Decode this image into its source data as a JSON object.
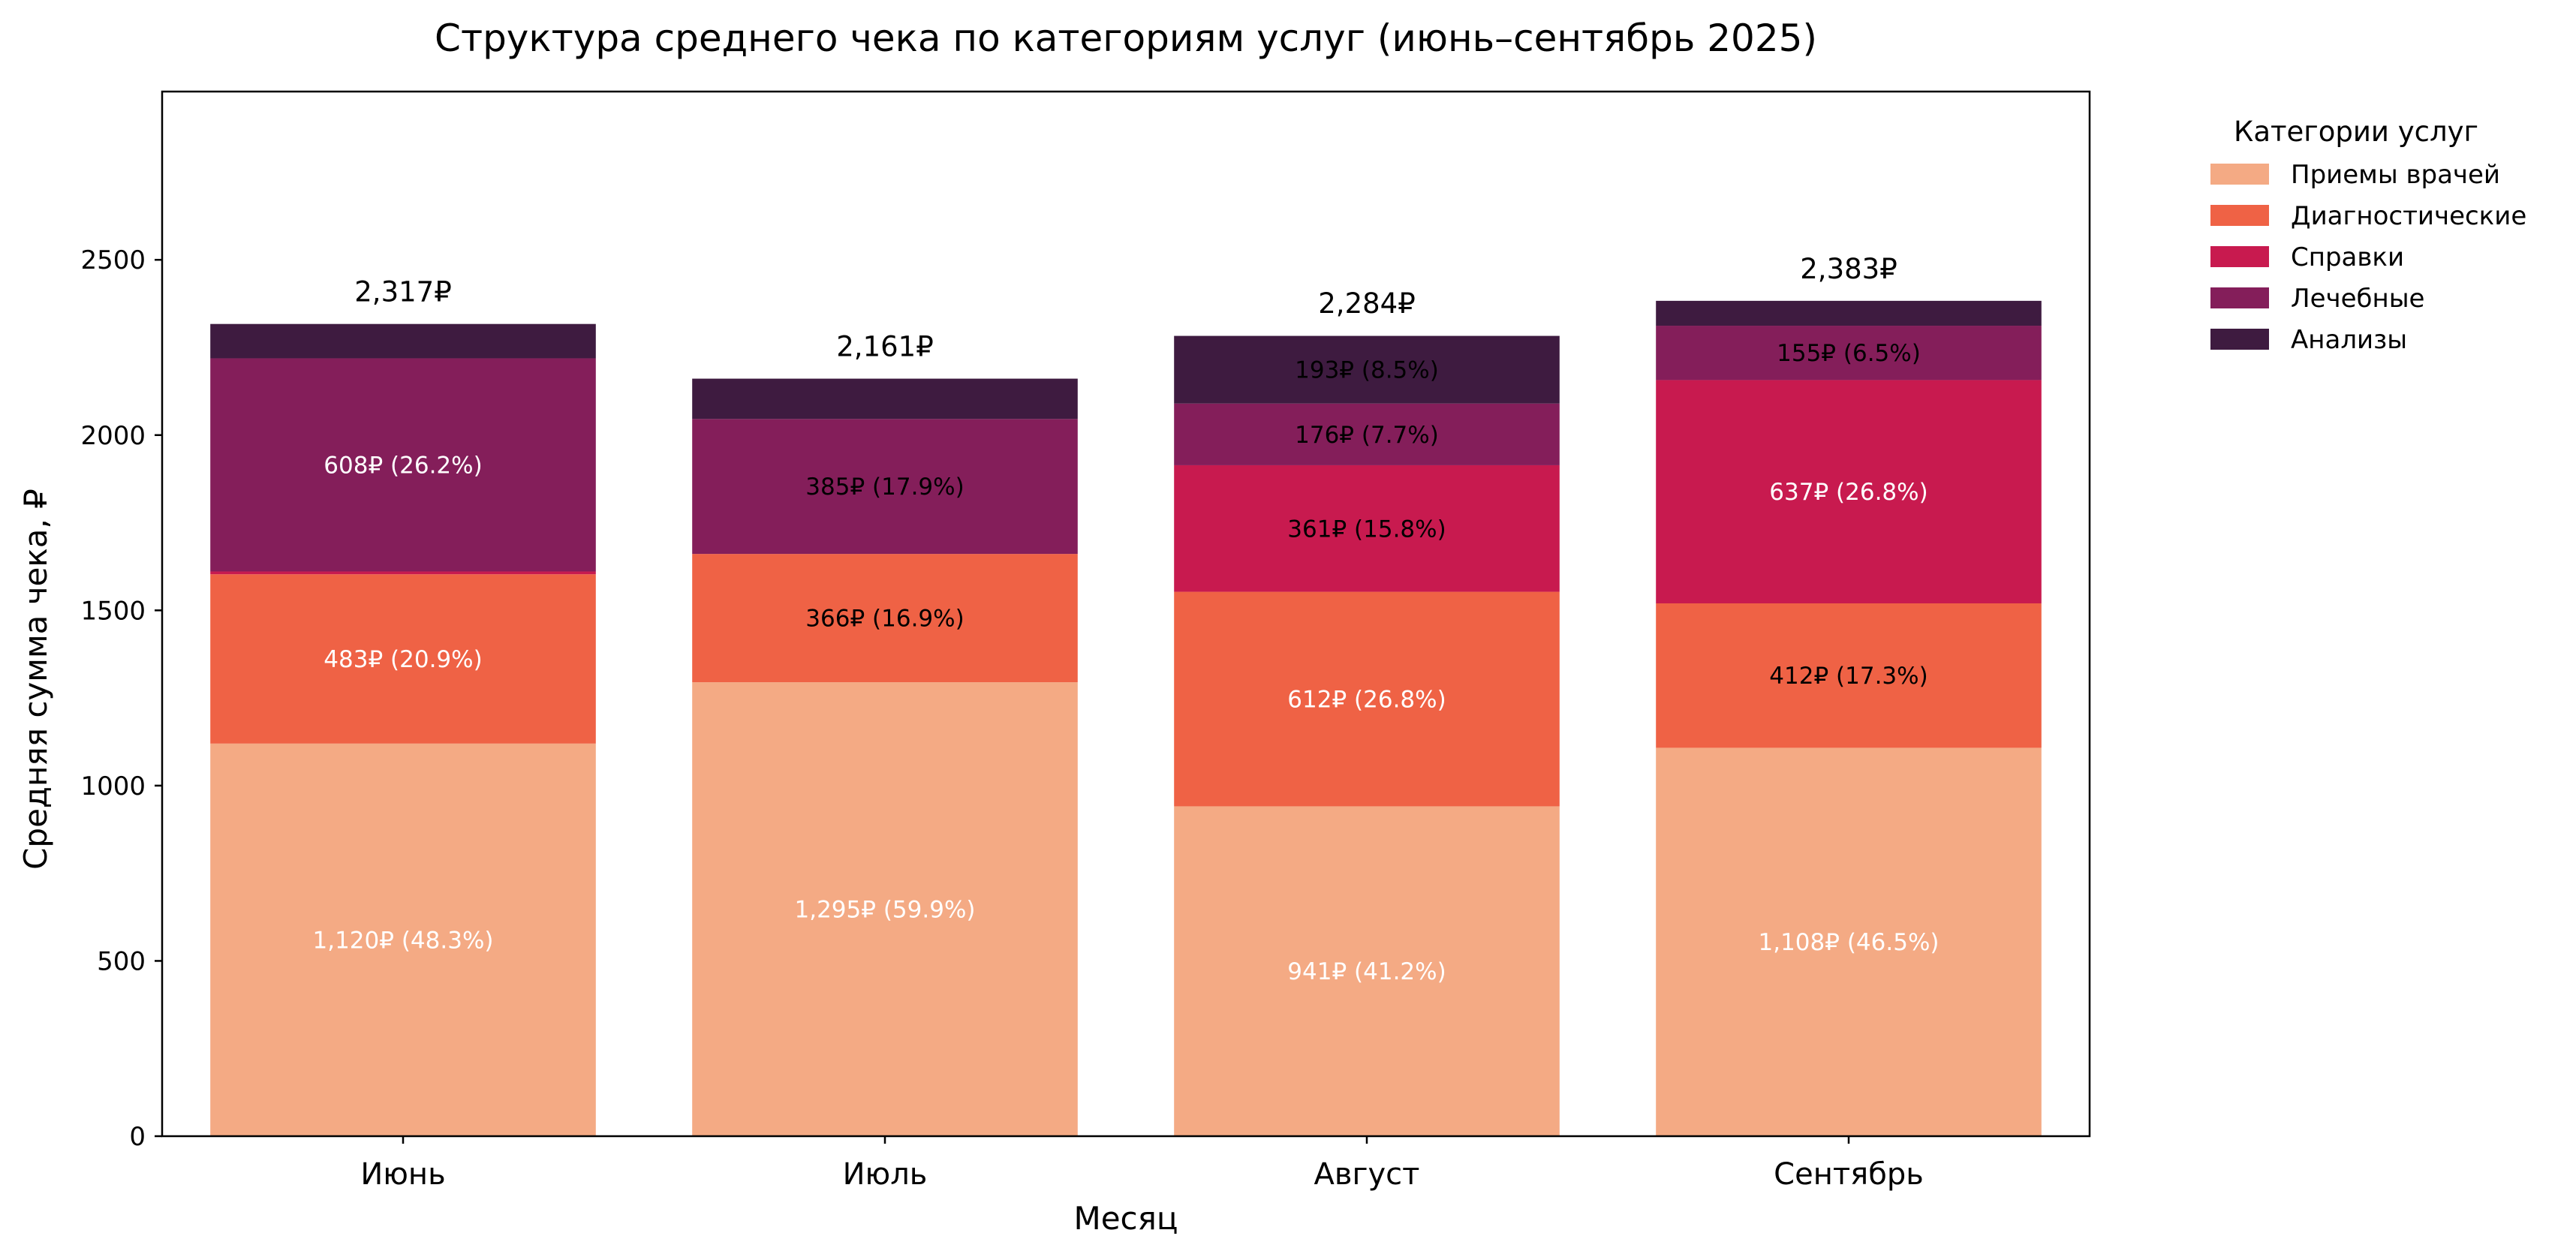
{
  "chart_data": {
    "type": "bar",
    "stacked": true,
    "title": "Структура среднего чека по категориям услуг (июнь–сентябрь 2025)",
    "xlabel": "Месяц",
    "ylabel": "Средняя сумма чека, ₽",
    "ylim": [
      0,
      2980
    ],
    "yticks": [
      0,
      500,
      1000,
      1500,
      2000,
      2500
    ],
    "grid": false,
    "legend": {
      "title": "Категории услуг",
      "position": "outside-top-right"
    },
    "categories": [
      "Июнь",
      "Июль",
      "Август",
      "Сентябрь"
    ],
    "totals": [
      2317,
      2161,
      2284,
      2383
    ],
    "total_labels": [
      "2,317₽",
      "2,161₽",
      "2,284₽",
      "2,383₽"
    ],
    "series": [
      {
        "name": "Приемы врачей",
        "color": "#f4aa84",
        "values": [
          1120,
          1295,
          941,
          1108
        ],
        "labels": [
          "1,120₽ (48.3%)",
          "1,295₽ (59.9%)",
          "941₽ (41.2%)",
          "1,108₽ (46.5%)"
        ],
        "label_colors": [
          "#ffffff",
          "#ffffff",
          "#ffffff",
          "#ffffff"
        ]
      },
      {
        "name": "Диагностические",
        "color": "#ef6245",
        "values": [
          483,
          366,
          612,
          412
        ],
        "labels": [
          "483₽ (20.9%)",
          "366₽ (16.9%)",
          "612₽ (26.8%)",
          "412₽ (17.3%)"
        ],
        "label_colors": [
          "#ffffff",
          "#000000",
          "#ffffff",
          "#000000"
        ]
      },
      {
        "name": "Справки",
        "color": "#c81a4f",
        "values": [
          8,
          0,
          361,
          637
        ],
        "labels": [
          "",
          "",
          "361₽ (15.8%)",
          "637₽ (26.8%)"
        ],
        "label_colors": [
          "#ffffff",
          "#ffffff",
          "#000000",
          "#ffffff"
        ]
      },
      {
        "name": "Лечебные",
        "color": "#841e5a",
        "values": [
          608,
          385,
          176,
          155
        ],
        "labels": [
          "608₽ (26.2%)",
          "385₽ (17.9%)",
          "176₽ (7.7%)",
          "155₽ (6.5%)"
        ],
        "label_colors": [
          "#ffffff",
          "#000000",
          "#000000",
          "#000000"
        ]
      },
      {
        "name": "Анализы",
        "color": "#3e1b40",
        "values": [
          98,
          115,
          193,
          71
        ],
        "labels": [
          "",
          "",
          "193₽ (8.5%)",
          ""
        ],
        "label_colors": [
          "#ffffff",
          "#ffffff",
          "#000000",
          "#ffffff"
        ]
      }
    ]
  }
}
